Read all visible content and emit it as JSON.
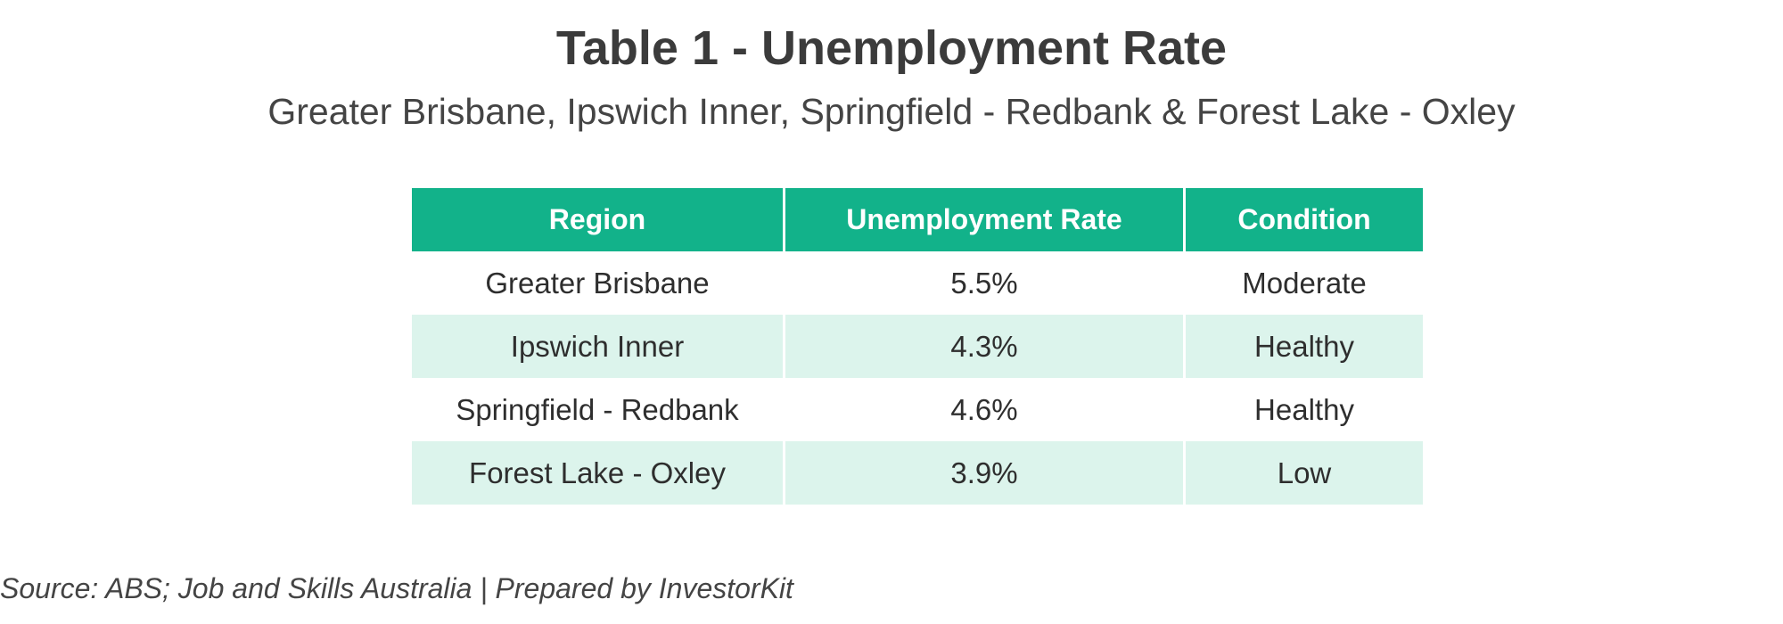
{
  "chart_data": {
    "type": "table",
    "title": "Table 1 - Unemployment Rate",
    "subtitle": "Greater Brisbane, Ipswich Inner, Springfield - Redbank & Forest Lake - Oxley",
    "columns": [
      "Region",
      "Unemployment Rate",
      "Condition"
    ],
    "rows": [
      [
        "Greater Brisbane",
        "5.5%",
        "Moderate"
      ],
      [
        "Ipswich Inner",
        "4.3%",
        "Healthy"
      ],
      [
        "Springfield - Redbank",
        "4.6%",
        "Healthy"
      ],
      [
        "Forest Lake - Oxley",
        "3.9%",
        "Low"
      ]
    ],
    "header_color": "#12b28a",
    "band_color": "#dcf4ec"
  },
  "source": "Source: ABS; Job and Skills Australia | Prepared by InvestorKit"
}
